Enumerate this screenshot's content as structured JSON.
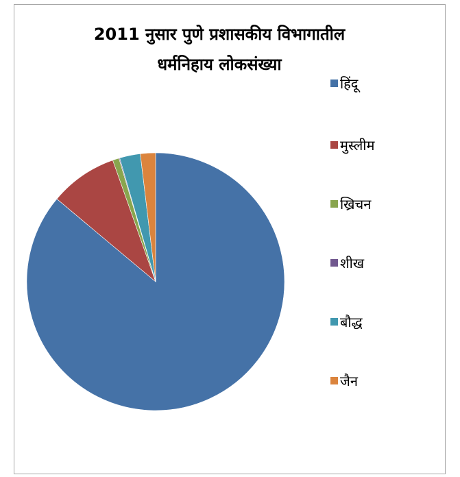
{
  "chart_data": {
    "type": "pie",
    "title_lines": [
      "2011 नुसार पुणे प्रशासकीय विभागातील",
      "धर्मनिहाय लोकसंख्या"
    ],
    "legend_position": "right",
    "categories": [
      "हिंदू",
      "मुस्लीम",
      "ख्रिचन",
      "शीख",
      "बौद्ध",
      "जैन"
    ],
    "values": [
      86.1,
      8.5,
      0.8,
      0.1,
      2.6,
      1.9
    ],
    "colors": [
      "#4572a7",
      "#aa4643",
      "#89a54e",
      "#71588f",
      "#4198af",
      "#db843d"
    ],
    "start_angle_deg": 0,
    "direction": "clockwise"
  }
}
